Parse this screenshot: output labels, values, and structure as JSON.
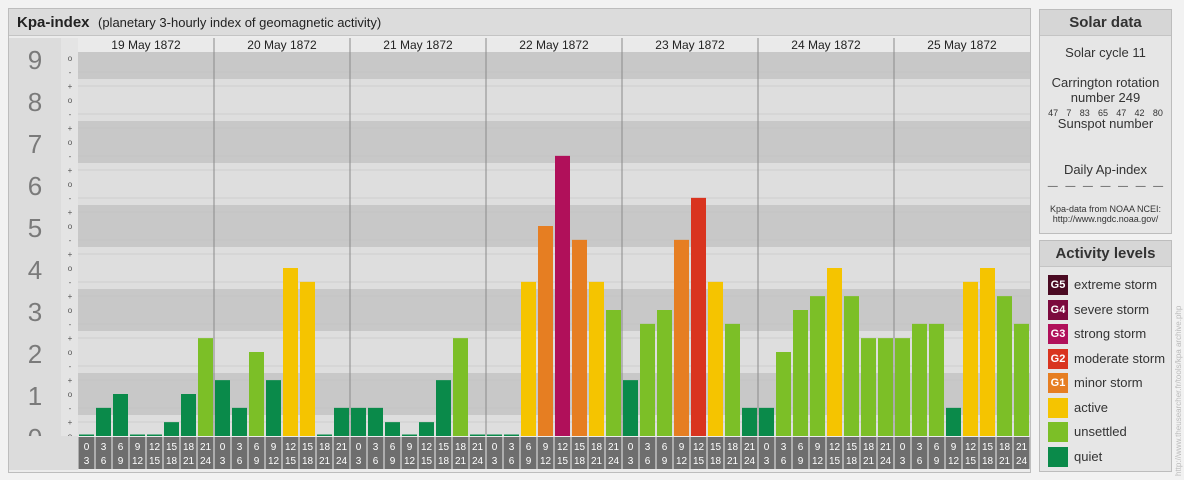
{
  "header": {
    "title": "Kpa-index",
    "subtitle": "(planetary 3-hourly index of geomagnetic activity)"
  },
  "chart_data": {
    "type": "bar",
    "title": "Kpa-index",
    "subtitle": "(planetary 3-hourly index of geomagnetic activity)",
    "ylim": [
      0,
      9
    ],
    "y_ticks": [
      "0",
      "1",
      "2",
      "3",
      "4",
      "5",
      "6",
      "7",
      "8",
      "9"
    ],
    "minor_ticks": [
      "-",
      "o",
      "+"
    ],
    "days": [
      "19 May 1872",
      "20 May 1872",
      "21 May 1872",
      "22 May 1872",
      "23 May 1872",
      "24 May 1872",
      "25 May 1872"
    ],
    "intervals": [
      [
        "0",
        "3"
      ],
      [
        "3",
        "6"
      ],
      [
        "6",
        "9"
      ],
      [
        "9",
        "12"
      ],
      [
        "12",
        "15"
      ],
      [
        "15",
        "18"
      ],
      [
        "18",
        "21"
      ],
      [
        "21",
        "24"
      ]
    ],
    "values": [
      [
        0,
        0.67,
        1,
        0,
        0,
        0.33,
        1,
        2.33
      ],
      [
        1.33,
        0.67,
        2,
        1.33,
        4,
        3.67,
        0,
        0.67
      ],
      [
        0.67,
        0.67,
        0.33,
        0,
        0.33,
        1.33,
        2.33,
        0
      ],
      [
        0,
        0,
        3.67,
        5,
        6.67,
        4.67,
        3.67,
        3
      ],
      [
        1.33,
        2.67,
        3,
        4.67,
        5.67,
        3.67,
        2.67,
        0.67
      ],
      [
        0.67,
        2,
        3,
        3.33,
        4,
        3.33,
        2.33,
        2.33
      ],
      [
        2.33,
        2.67,
        2.67,
        0.67,
        3.67,
        4,
        3.33,
        2.67
      ]
    ],
    "colors": {
      "quiet": "#0a8a4a",
      "unsettled": "#7cbf27",
      "active": "#f5c400",
      "G1": "#e67e22",
      "G2": "#d9341f",
      "G3": "#b0105a",
      "G4": "#7c0a3e",
      "G5": "#4a0a22"
    },
    "grid": true,
    "legend_position": "right"
  },
  "solar_data": {
    "heading": "Solar data",
    "solar_cycle": "Solar cycle 11",
    "carrington_line1": "Carrington rotation",
    "carrington_line2": "number 249",
    "sunspot_heading": "Sunspot number",
    "sunspot_numbers": [
      "47",
      "7",
      "83",
      "65",
      "47",
      "42",
      "80"
    ],
    "ap_heading": "Daily Ap-index",
    "ap_values": [
      "—",
      "—",
      "—",
      "—",
      "—",
      "—",
      "—"
    ],
    "source_line1": "Kpa-data from NOAA NCEI:",
    "source_line2": "http://www.ngdc.noaa.gov/"
  },
  "activity_levels": {
    "heading": "Activity levels",
    "items": [
      {
        "badge": "G5",
        "label": "extreme storm",
        "color": "#4a0a22"
      },
      {
        "badge": "G4",
        "label": "severe storm",
        "color": "#7c0a3e"
      },
      {
        "badge": "G3",
        "label": "strong storm",
        "color": "#b0105a"
      },
      {
        "badge": "G2",
        "label": "moderate storm",
        "color": "#d9341f"
      },
      {
        "badge": "G1",
        "label": "minor storm",
        "color": "#e67e22"
      },
      {
        "badge": "",
        "label": "active",
        "color": "#f5c400"
      },
      {
        "badge": "",
        "label": "unsettled",
        "color": "#7cbf27"
      },
      {
        "badge": "",
        "label": "quiet",
        "color": "#0a8a4a"
      }
    ]
  },
  "watermark": "http://www.theusearcher.fr/tools/kpa archive.php"
}
